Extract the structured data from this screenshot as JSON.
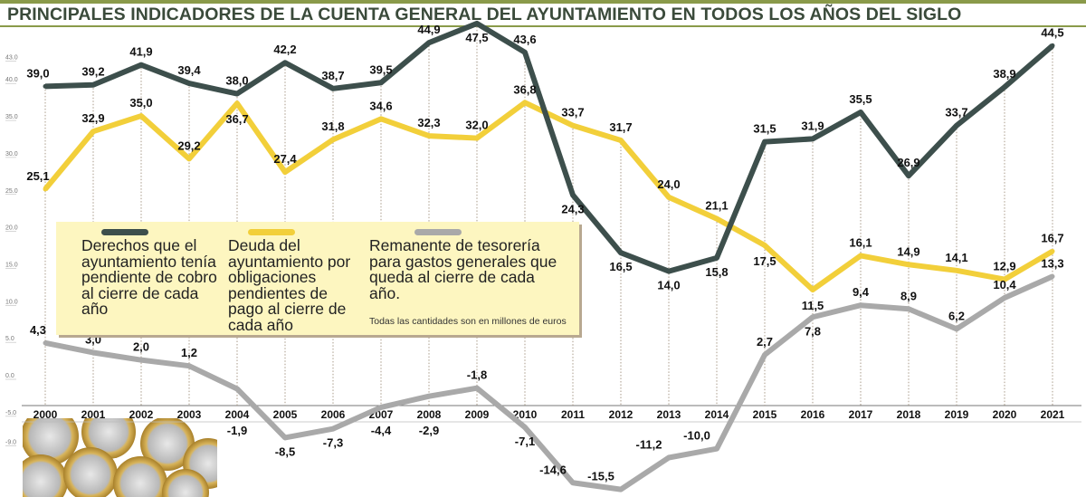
{
  "title": "PRINCIPALES INDICADORES DE LA CUENTA GENERAL DEL AYUNTAMIENTO EN TODOS LOS AÑOS DEL SIGLO",
  "legend": {
    "series0": "Derechos que el ayuntamiento tenía pendiente de cobro al cierre de cada año",
    "series1": "Deuda del ayuntamiento por obligaciones pendientes de pago al cierre de cada año",
    "series2": "Remanente de tesorería para gastos generales que queda al cierre de cada año.",
    "note": "Todas las cantidades son en millones de euros"
  },
  "chart_data": {
    "type": "line",
    "title": "PRINCIPALES INDICADORES DE LA CUENTA GENERAL DEL AYUNTAMIENTO EN TODOS LOS AÑOS DEL SIGLO",
    "x": [
      "2000",
      "2001",
      "2002",
      "2003",
      "2004",
      "2005",
      "2006",
      "2007",
      "2008",
      "2009",
      "2010",
      "2011",
      "2012",
      "2013",
      "2014",
      "2015",
      "2016",
      "2017",
      "2018",
      "2019",
      "2020",
      "2021"
    ],
    "yticks": [
      "43.0",
      "40.0",
      "35.0",
      "30.0",
      "25.0",
      "20.0",
      "15.0",
      "10.0",
      "5.0",
      "0.0",
      "-5.0",
      "-9.0"
    ],
    "ylim": [
      -16,
      48
    ],
    "grid": "vertical dotted",
    "legend_placement": "center-left",
    "series": [
      {
        "name": "Derechos que el ayuntamiento tenía pendiente de cobro al cierre de cada año",
        "color": "#3d4f4c",
        "values": [
          39.0,
          39.2,
          41.9,
          39.4,
          38.0,
          42.2,
          38.7,
          39.5,
          44.9,
          47.5,
          43.6,
          24.3,
          16.5,
          14.0,
          15.8,
          31.5,
          31.9,
          35.5,
          26.9,
          33.7,
          38.9,
          44.5
        ]
      },
      {
        "name": "Deuda del ayuntamiento por obligaciones pendientes de pago al cierre de cada año",
        "color": "#f2cf3a",
        "values": [
          25.1,
          32.9,
          35.0,
          29.2,
          36.7,
          27.4,
          31.8,
          34.6,
          32.3,
          32.0,
          36.8,
          33.7,
          31.7,
          24.0,
          21.1,
          17.5,
          11.5,
          16.1,
          14.9,
          14.1,
          12.9,
          16.7
        ]
      },
      {
        "name": "Remanente de tesorería para gastos generales que queda al cierre de cada año.",
        "color": "#a9a9a9",
        "values": [
          4.3,
          3.0,
          2.0,
          1.2,
          -1.9,
          -8.5,
          -7.3,
          -4.4,
          -2.9,
          -1.8,
          -7.1,
          -14.6,
          -15.5,
          -11.2,
          -10.0,
          2.7,
          7.8,
          9.4,
          8.9,
          6.2,
          10.4,
          13.3
        ]
      }
    ]
  }
}
